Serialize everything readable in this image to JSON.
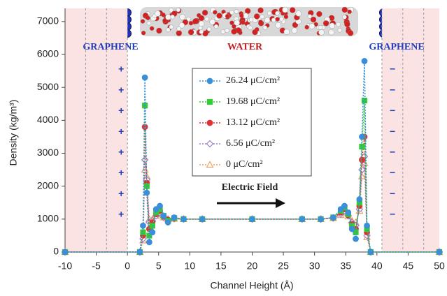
{
  "chart_data": {
    "type": "line",
    "xlabel": "Channel Height (Å)",
    "ylabel": "Density (kg/m³)",
    "xlim": [
      -10,
      50
    ],
    "xticks": [
      -10,
      -5,
      0,
      5,
      10,
      15,
      20,
      25,
      30,
      35,
      40,
      45,
      50
    ],
    "ylim": [
      0,
      7400
    ],
    "yticks": [
      0,
      1000,
      2000,
      3000,
      4000,
      5000,
      6000,
      7000
    ],
    "grid": false,
    "legend": "upper center",
    "shaded_regions": [
      [
        -10,
        0
      ],
      [
        40.8,
        50
      ]
    ],
    "shade_color": "#fbe3e3",
    "graphene_layers": [
      -6.7,
      -3.35,
      0,
      40.8,
      44.15,
      47.5
    ],
    "annotations": {
      "left_label": "GRAPHENE",
      "center_label": "WATER",
      "right_label": "GRAPHENE",
      "field_label": "Electric Field",
      "left_charges": [
        "+",
        "+",
        "+",
        "+",
        "+",
        "+",
        "+",
        "+"
      ],
      "right_charges": [
        "−",
        "−",
        "−",
        "−",
        "−",
        "−",
        "−",
        "−"
      ]
    },
    "x": [
      -10,
      2.0,
      2.5,
      2.8,
      3.1,
      3.5,
      4.0,
      4.6,
      5.2,
      5.8,
      6.5,
      7.5,
      9,
      12,
      20,
      28,
      31,
      33,
      34.2,
      34.8,
      35.4,
      36.0,
      36.6,
      37.2,
      37.6,
      38.0,
      38.4,
      39,
      50
    ],
    "series": [
      {
        "name": "26.24 μC/cm²",
        "color": "#3a8fd8",
        "marker": "circle",
        "filled": true,
        "values": [
          0,
          0,
          800,
          5300,
          1800,
          300,
          600,
          1300,
          1400,
          1100,
          900,
          1050,
          1000,
          1000,
          1000,
          1000,
          1000,
          1050,
          1300,
          1400,
          1200,
          700,
          400,
          1600,
          3500,
          5800,
          800,
          0,
          0
        ]
      },
      {
        "name": "19.68 μC/cm²",
        "color": "#33cc33",
        "marker": "square",
        "filled": true,
        "values": [
          0,
          0,
          600,
          4450,
          2000,
          500,
          800,
          1200,
          1300,
          1100,
          950,
          1030,
          1000,
          1000,
          1000,
          1000,
          1000,
          1050,
          1250,
          1350,
          1150,
          800,
          600,
          1500,
          3200,
          4600,
          700,
          0,
          0
        ]
      },
      {
        "name": "13.12 μC/cm²",
        "color": "#e03030",
        "marker": "circle",
        "filled": true,
        "values": [
          0,
          0,
          500,
          3800,
          2100,
          700,
          900,
          1150,
          1250,
          1080,
          980,
          1020,
          1000,
          1000,
          1000,
          1000,
          1000,
          1040,
          1200,
          1300,
          1120,
          850,
          700,
          1400,
          2800,
          3500,
          600,
          0,
          0
        ]
      },
      {
        "name": "6.56 μC/cm²",
        "color": "#9b7fd1",
        "marker": "diamond",
        "filled": false,
        "values": [
          0,
          0,
          400,
          2800,
          2200,
          900,
          950,
          1100,
          1200,
          1050,
          990,
          1010,
          1000,
          1000,
          1000,
          1000,
          1000,
          1030,
          1150,
          1250,
          1100,
          900,
          800,
          1300,
          2500,
          2900,
          500,
          0,
          0
        ]
      },
      {
        "name": "0 μC/cm²",
        "color": "#f0a060",
        "marker": "triangle",
        "filled": false,
        "values": [
          0,
          0,
          350,
          2500,
          2300,
          1000,
          1000,
          1100,
          1150,
          1050,
          1000,
          1010,
          1000,
          1000,
          1000,
          1000,
          1000,
          1030,
          1120,
          1200,
          1080,
          950,
          900,
          1250,
          2300,
          2700,
          450,
          0,
          0
        ]
      }
    ]
  }
}
